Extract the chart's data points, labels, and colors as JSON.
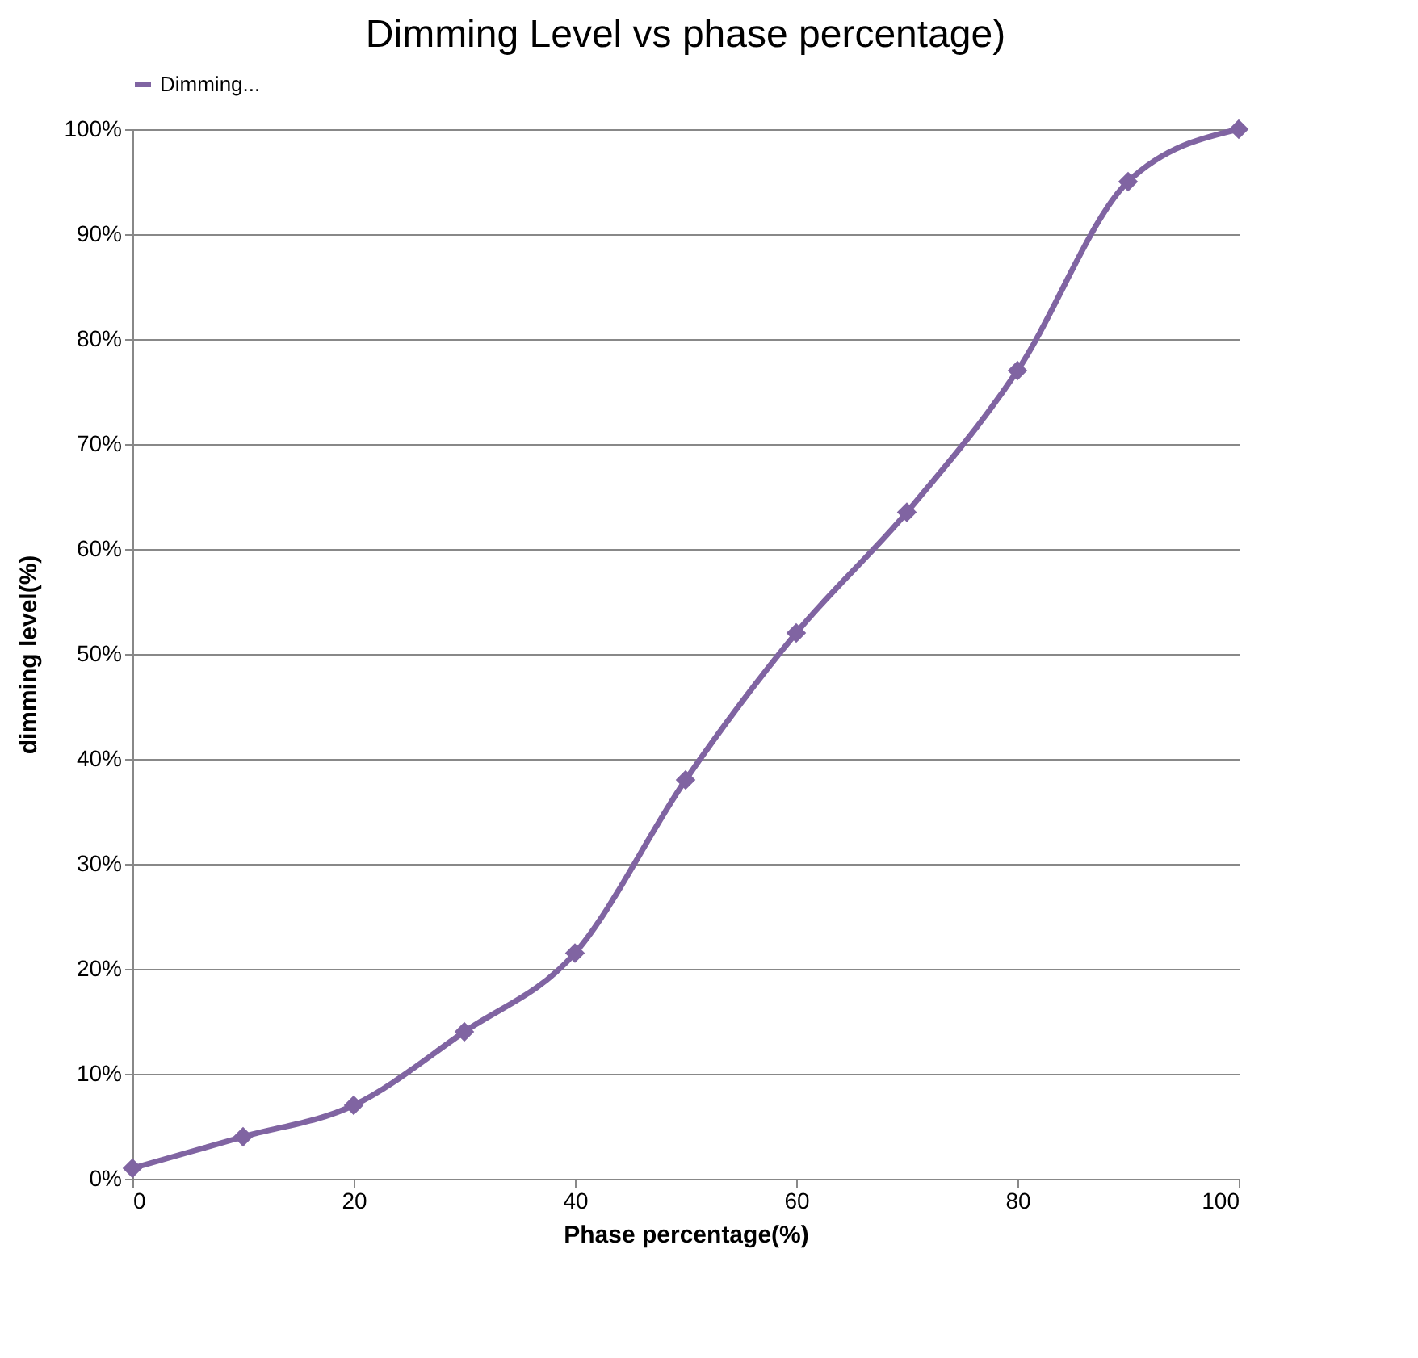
{
  "chart_data": {
    "type": "line",
    "title": "Dimming Level vs phase percentage)",
    "xlabel": "Phase percentage(%)",
    "ylabel": "dimming level(%)",
    "x": [
      0,
      10,
      20,
      30,
      40,
      50,
      60,
      70,
      80,
      90,
      100
    ],
    "series": [
      {
        "name": "Dimming...",
        "color": "#8064a2",
        "values": [
          1,
          4,
          7,
          14,
          21.5,
          38,
          52,
          63.5,
          77,
          95,
          100
        ]
      }
    ],
    "xlim": [
      0,
      100
    ],
    "xticks": [
      0,
      20,
      40,
      60,
      80,
      100
    ],
    "ylim": [
      0,
      100
    ],
    "yticks": [
      {
        "value": 0,
        "label": "0%"
      },
      {
        "value": 10,
        "label": "10%"
      },
      {
        "value": 20,
        "label": "20%"
      },
      {
        "value": 30,
        "label": "30%"
      },
      {
        "value": 40,
        "label": "40%"
      },
      {
        "value": 50,
        "label": "50%"
      },
      {
        "value": 60,
        "label": "60%"
      },
      {
        "value": 70,
        "label": "70%"
      },
      {
        "value": 80,
        "label": "80%"
      },
      {
        "value": 90,
        "label": "90%"
      },
      {
        "value": 100,
        "label": "100%"
      }
    ],
    "grid": "y",
    "legend": "top",
    "marker": "diamond",
    "line_style": "solid"
  }
}
